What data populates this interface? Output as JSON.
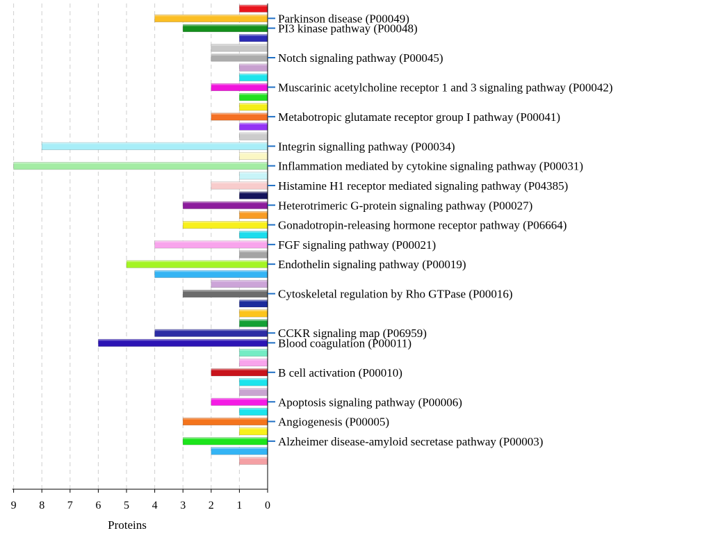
{
  "chart_data": {
    "type": "bar",
    "orientation": "horizontal",
    "xlabel": "Proteins",
    "xlim": [
      0,
      9
    ],
    "x_ticks": [
      "9",
      "8",
      "7",
      "6",
      "5",
      "4",
      "3",
      "2",
      "1",
      "0"
    ],
    "x_axis_reversed": true,
    "labeled_categories": [
      {
        "label": "Parkinson disease (P00049)",
        "value": 4
      },
      {
        "label": "PI3 kinase pathway (P00048)",
        "value": 3
      },
      {
        "label": "Notch signaling pathway (P00045)",
        "value": 2
      },
      {
        "label": "Muscarinic acetylcholine receptor 1 and 3 signaling pathway (P00042)",
        "value": 2
      },
      {
        "label": "Metabotropic glutamate receptor group I pathway (P00041)",
        "value": 2
      },
      {
        "label": "Integrin signalling pathway (P00034)",
        "value": 8
      },
      {
        "label": "Inflammation mediated by cytokine signaling pathway (P00031)",
        "value": 9
      },
      {
        "label": "Histamine H1 receptor mediated signaling pathway (P04385)",
        "value": 2
      },
      {
        "label": "Heterotrimeric G-protein signaling pathway (P00027)",
        "value": 3
      },
      {
        "label": "Gonadotropin-releasing hormone receptor pathway (P06664)",
        "value": 3
      },
      {
        "label": "FGF signaling pathway (P00021)",
        "value": 4
      },
      {
        "label": "Endothelin signaling pathway (P00019)",
        "value": 5
      },
      {
        "label": "Cytoskeletal regulation by Rho GTPase (P00016)",
        "value": 3
      },
      {
        "label": "CCKR signaling map (P06959)",
        "value": 4
      },
      {
        "label": "Blood coagulation (P00011)",
        "value": 6
      },
      {
        "label": "B cell activation (P00010)",
        "value": 2
      },
      {
        "label": "Apoptosis signaling pathway (P00006)",
        "value": 2
      },
      {
        "label": "Angiogenesis (P00005)",
        "value": 3
      },
      {
        "label": "Alzheimer disease-amyloid secretase pathway (P00003)",
        "value": 3
      }
    ],
    "bars": [
      {
        "value": 1,
        "color": "#e8141c"
      },
      {
        "value": 4,
        "color": "#fbbe24"
      },
      {
        "value": 3,
        "color": "#14901c"
      },
      {
        "value": 1,
        "color": "#2c2cb4"
      },
      {
        "value": 2,
        "color": "#c8c8c8"
      },
      {
        "value": 2,
        "color": "#acacac"
      },
      {
        "value": 1,
        "color": "#c8a0d0"
      },
      {
        "value": 1,
        "color": "#1ee4ec"
      },
      {
        "value": 2,
        "color": "#f014dc"
      },
      {
        "value": 1,
        "color": "#20e020"
      },
      {
        "value": 1,
        "color": "#f4ee18"
      },
      {
        "value": 2,
        "color": "#f47024"
      },
      {
        "value": 1,
        "color": "#9434f4"
      },
      {
        "value": 1,
        "color": "#cccccc"
      },
      {
        "value": 8,
        "color": "#a8eef8"
      },
      {
        "value": 1,
        "color": "#fbf7c4"
      },
      {
        "value": 9,
        "color": "#a4eca4"
      },
      {
        "value": 1,
        "color": "#c8f4f8"
      },
      {
        "value": 2,
        "color": "#f8cccc"
      },
      {
        "value": 1,
        "color": "#14145c"
      },
      {
        "value": 3,
        "color": "#8c1c9c"
      },
      {
        "value": 1,
        "color": "#f89c24"
      },
      {
        "value": 3,
        "color": "#f8f01c"
      },
      {
        "value": 1,
        "color": "#1cdcec"
      },
      {
        "value": 4,
        "color": "#f8a4ec"
      },
      {
        "value": 1,
        "color": "#a4a4a4"
      },
      {
        "value": 5,
        "color": "#a4f424"
      },
      {
        "value": 4,
        "color": "#34b4f4"
      },
      {
        "value": 2,
        "color": "#cca4d8"
      },
      {
        "value": 3,
        "color": "#6c6c6c"
      },
      {
        "value": 1,
        "color": "#1c2c9c"
      },
      {
        "value": 1,
        "color": "#fcc41c"
      },
      {
        "value": 1,
        "color": "#14a034"
      },
      {
        "value": 4,
        "color": "#2c2ca4"
      },
      {
        "value": 6,
        "color": "#2c14b4"
      },
      {
        "value": 1,
        "color": "#74ecc4"
      },
      {
        "value": 1,
        "color": "#f8a4ec"
      },
      {
        "value": 2,
        "color": "#c8141c"
      },
      {
        "value": 1,
        "color": "#1ce4ec"
      },
      {
        "value": 1,
        "color": "#c8a4d0"
      },
      {
        "value": 2,
        "color": "#f41ce4"
      },
      {
        "value": 1,
        "color": "#1ce4ec"
      },
      {
        "value": 3,
        "color": "#f4741c"
      },
      {
        "value": 1,
        "color": "#f8f01c"
      },
      {
        "value": 3,
        "color": "#1ce41c"
      },
      {
        "value": 2,
        "color": "#34b4f4"
      },
      {
        "value": 1,
        "color": "#f4a0a4"
      }
    ]
  }
}
